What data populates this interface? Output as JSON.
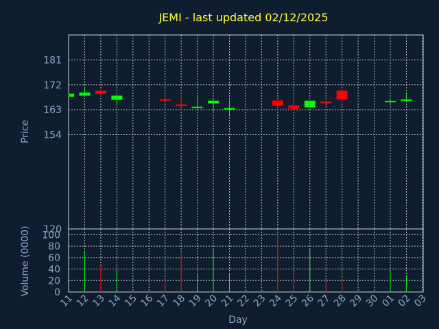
{
  "chart_data": [
    {
      "type": "candlestick",
      "title": "JEMI - last updated 02/12/2025",
      "ylabel": "Price",
      "ylim": [
        120,
        190
      ],
      "y_ticks": [
        181,
        172,
        163,
        154,
        120
      ],
      "grid": true,
      "candles": [
        {
          "x": "11",
          "open": 167.7,
          "high": 168.8,
          "low": 167.6,
          "close": 168.8
        },
        {
          "x": "12",
          "open": 168.1,
          "high": 171.1,
          "low": 168.1,
          "close": 169.2
        },
        {
          "x": "13",
          "open": 169.8,
          "high": 170.9,
          "low": 167.8,
          "close": 168.8
        },
        {
          "x": "14",
          "open": 166.6,
          "high": 168.1,
          "low": 164.8,
          "close": 168.1
        },
        {
          "x": "17",
          "open": 166.8,
          "high": 168.2,
          "low": 166.2,
          "close": 166.3
        },
        {
          "x": "18",
          "open": 164.9,
          "high": 168.2,
          "low": 162.9,
          "close": 164.4
        },
        {
          "x": "19",
          "open": 163.8,
          "high": 168.0,
          "low": 163.5,
          "close": 164.1
        },
        {
          "x": "20",
          "open": 165.3,
          "high": 167.2,
          "low": 162.0,
          "close": 166.3
        },
        {
          "x": "21",
          "open": 163.2,
          "high": 166.6,
          "low": 161.4,
          "close": 163.6
        },
        {
          "x": "24",
          "open": 166.4,
          "high": 166.4,
          "low": 163.0,
          "close": 164.5
        },
        {
          "x": "25",
          "open": 164.6,
          "high": 168.3,
          "low": 163.4,
          "close": 163.4
        },
        {
          "x": "26",
          "open": 163.9,
          "high": 166.3,
          "low": 163.9,
          "close": 166.3
        },
        {
          "x": "27",
          "open": 166.0,
          "high": 166.3,
          "low": 165.2,
          "close": 165.4
        },
        {
          "x": "28",
          "open": 169.9,
          "high": 170.0,
          "low": 165.0,
          "close": 166.7
        },
        {
          "x": "01",
          "open": 165.7,
          "high": 166.8,
          "low": 165.1,
          "close": 166.2
        },
        {
          "x": "02",
          "open": 166.4,
          "high": 168.7,
          "low": 166.4,
          "close": 166.7
        }
      ]
    },
    {
      "type": "bar",
      "ylabel": "Volume (0000)",
      "xlabel": "Day",
      "ylim": [
        0,
        110
      ],
      "y_ticks": [
        0,
        20,
        40,
        60,
        80,
        100
      ],
      "grid": true,
      "categories": [
        "11",
        "12",
        "13",
        "14",
        "15",
        "16",
        "17",
        "18",
        "19",
        "20",
        "21",
        "22",
        "23",
        "24",
        "25",
        "26",
        "27",
        "28",
        "29",
        "30",
        "01",
        "02",
        "03"
      ],
      "bars": [
        {
          "x": "12",
          "value": 72,
          "direction": "up"
        },
        {
          "x": "13",
          "value": 46,
          "direction": "down"
        },
        {
          "x": "14",
          "value": 36,
          "direction": "up"
        },
        {
          "x": "17",
          "value": 22,
          "direction": "down"
        },
        {
          "x": "18",
          "value": 68,
          "direction": "down"
        },
        {
          "x": "19",
          "value": 32,
          "direction": "up"
        },
        {
          "x": "20",
          "value": 74,
          "direction": "up"
        },
        {
          "x": "21",
          "value": 32,
          "direction": "up"
        },
        {
          "x": "24",
          "value": 100,
          "direction": "down"
        },
        {
          "x": "25",
          "value": 30,
          "direction": "down"
        },
        {
          "x": "26",
          "value": 75,
          "direction": "up"
        },
        {
          "x": "27",
          "value": 15,
          "direction": "down"
        },
        {
          "x": "28",
          "value": 26,
          "direction": "down"
        },
        {
          "x": "01",
          "value": 36,
          "direction": "up"
        },
        {
          "x": "02",
          "value": 28,
          "direction": "up"
        }
      ]
    }
  ],
  "colors": {
    "background": "#0f1e2e",
    "frame": "#c8d0d8",
    "title": "#ffff33",
    "axis_text": "#8aa6c8",
    "up": "#00ff00",
    "down": "#ff0000"
  }
}
